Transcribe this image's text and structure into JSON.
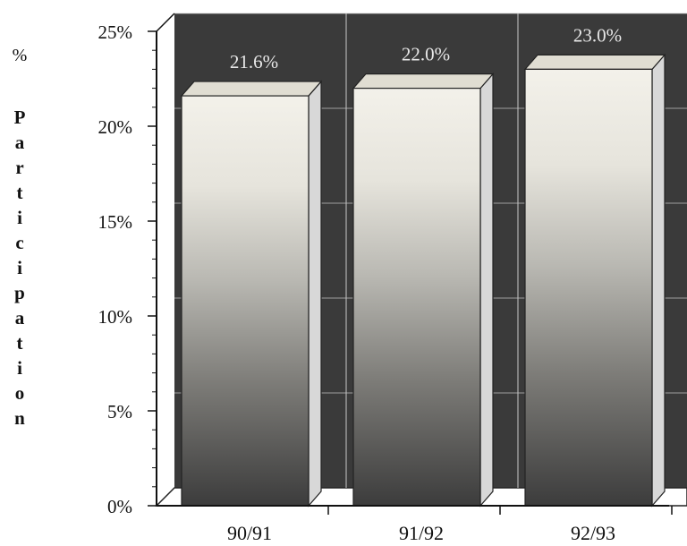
{
  "chart_data": {
    "type": "bar",
    "title": "",
    "xlabel": "",
    "ylabel_prefix": "%",
    "ylabel": "Participation",
    "categories": [
      "90/91",
      "91/92",
      "92/93"
    ],
    "values": [
      21.6,
      22.0,
      23.0
    ],
    "data_labels": [
      "21.6%",
      "22.0%",
      "23.0%"
    ],
    "ylim": [
      0,
      25
    ],
    "yticks": [
      0,
      5,
      10,
      15,
      20,
      25
    ],
    "ytick_labels": [
      "0%",
      "5%",
      "10%",
      "15%",
      "20%",
      "25%"
    ],
    "grid": true,
    "style": "3d",
    "colors": {
      "back_wall": "#3a3a3a",
      "bar_top": "#e0ddd2",
      "bar_side": "#d8d8d8",
      "grid": "#c8c8c8"
    }
  }
}
